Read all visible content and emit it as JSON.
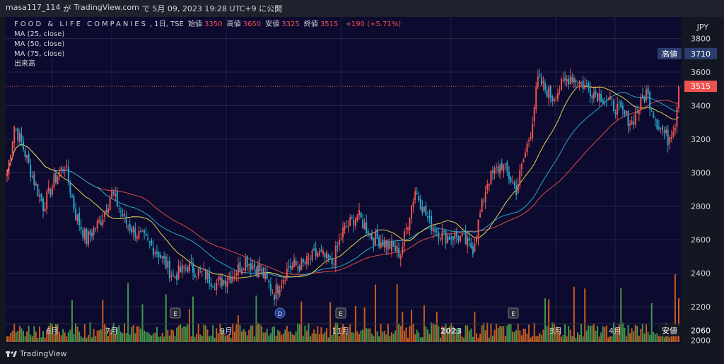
{
  "header": {
    "user": "masa117_114",
    "via": "が",
    "platform": "TradingView.com",
    "date_text": "で 5月 09, 2023 19:28 UTC+9 に公開"
  },
  "legend": {
    "symbol": "FOOD & LIFE COMPANIES",
    "interval": ", 1日, TSE",
    "open_label": "始値",
    "open": "3350",
    "high_label": "高値",
    "high": "3650",
    "low_label": "安値",
    "low": "3325",
    "close_label": "終値",
    "close": "3515",
    "change": "+190 (+5.71%)",
    "ma": [
      "MA (25, close)",
      "MA (50, close)",
      "MA (75, close)"
    ],
    "volume": "出来高"
  },
  "footer": {
    "brand": "TradingView"
  },
  "colors": {
    "background": "#0c0a2e",
    "up": "#ef5350",
    "down": "#26a6c9",
    "ma25": "#e8d44d",
    "ma50": "#26a6d1",
    "ma75": "#e04848",
    "vol_up": "#e86c1a",
    "vol_down": "#4caf50",
    "high_badge": "#2a3d6e",
    "close_badge": "#ef5350"
  },
  "chart_data": {
    "type": "candlestick",
    "currency": "JPY",
    "y_ticks": [
      2000,
      2200,
      2400,
      2600,
      2800,
      3000,
      3200,
      3400,
      3600,
      3800
    ],
    "ylim": [
      1990,
      3920
    ],
    "x_ticks": [
      "6月",
      "7月",
      "9月",
      "11月",
      "2023",
      "3月",
      "4月"
    ],
    "price_labels": {
      "high_label": "高値",
      "high": 3710,
      "close": 3515,
      "low_label": "安値",
      "low": 2060
    },
    "earnings_markers": [
      "E",
      "E",
      "D",
      "E",
      "E"
    ],
    "anchors": [
      [
        0,
        3000
      ],
      [
        4,
        3280
      ],
      [
        8,
        3180
      ],
      [
        14,
        2980
      ],
      [
        20,
        2800
      ],
      [
        26,
        2950
      ],
      [
        32,
        3050
      ],
      [
        38,
        2750
      ],
      [
        44,
        2600
      ],
      [
        52,
        2720
      ],
      [
        58,
        2880
      ],
      [
        66,
        2700
      ],
      [
        74,
        2620
      ],
      [
        84,
        2520
      ],
      [
        92,
        2380
      ],
      [
        100,
        2440
      ],
      [
        108,
        2400
      ],
      [
        116,
        2340
      ],
      [
        124,
        2380
      ],
      [
        132,
        2480
      ],
      [
        140,
        2420
      ],
      [
        148,
        2280
      ],
      [
        156,
        2440
      ],
      [
        164,
        2450
      ],
      [
        172,
        2520
      ],
      [
        180,
        2460
      ],
      [
        186,
        2650
      ],
      [
        194,
        2750
      ],
      [
        202,
        2620
      ],
      [
        210,
        2580
      ],
      [
        218,
        2520
      ],
      [
        226,
        2900
      ],
      [
        234,
        2700
      ],
      [
        242,
        2620
      ],
      [
        250,
        2620
      ],
      [
        258,
        2550
      ],
      [
        266,
        2950
      ],
      [
        274,
        3050
      ],
      [
        282,
        2900
      ],
      [
        290,
        3250
      ],
      [
        294,
        3550
      ],
      [
        302,
        3450
      ],
      [
        312,
        3580
      ],
      [
        322,
        3500
      ],
      [
        330,
        3450
      ],
      [
        338,
        3380
      ],
      [
        346,
        3300
      ],
      [
        354,
        3480
      ],
      [
        360,
        3300
      ],
      [
        366,
        3200
      ],
      [
        370,
        3300
      ],
      [
        372,
        3515
      ]
    ],
    "n_bars": 373
  }
}
